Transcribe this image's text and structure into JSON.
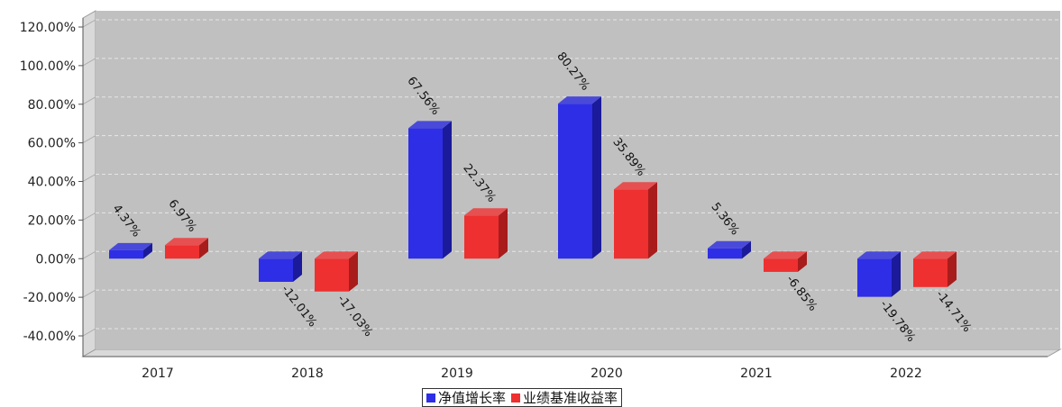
{
  "chart_data": {
    "type": "bar",
    "categories": [
      "2017",
      "2018",
      "2019",
      "2020",
      "2021",
      "2022"
    ],
    "series": [
      {
        "name": "净值增长率",
        "values": [
          4.37,
          -12.01,
          67.56,
          80.27,
          5.36,
          -19.78
        ],
        "labels": [
          "4.37%",
          "-12.01%",
          "67.56%",
          "80.27%",
          "5.36%",
          "-19.78%"
        ]
      },
      {
        "name": "业绩基准收益率",
        "values": [
          6.97,
          -17.03,
          22.37,
          35.89,
          -6.85,
          -14.71
        ],
        "labels": [
          "6.97%",
          "-17.03%",
          "22.37%",
          "35.89%",
          "-6.85%",
          "-14.71%"
        ]
      }
    ],
    "yticks": [
      "120.00%",
      "100.00%",
      "80.00%",
      "60.00%",
      "40.00%",
      "20.00%",
      "0.00%",
      "-20.00%",
      "-40.00%"
    ],
    "ylim": [
      -40,
      120
    ],
    "grid": true,
    "legend_position": "bottom"
  },
  "colors": {
    "series_front": [
      "#2e2ee6",
      "#ee3030"
    ],
    "series_side": [
      "#1a1a9a",
      "#a81c1c"
    ],
    "series_top": [
      "#4a4ad8",
      "#e65050"
    ],
    "plot_background": "#c0c0c0"
  }
}
